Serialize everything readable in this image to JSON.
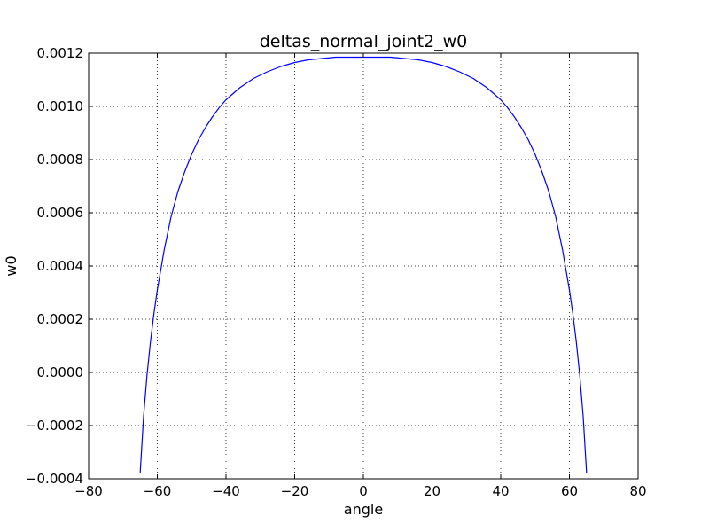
{
  "chart_data": {
    "type": "line",
    "title": "deltas_normal_joint2_w0",
    "xlabel": "angle",
    "ylabel": "w0",
    "xlim": [
      -80,
      80
    ],
    "ylim": [
      -0.0004,
      0.0012
    ],
    "xticks": [
      -80,
      -60,
      -40,
      -20,
      0,
      20,
      40,
      60,
      80
    ],
    "xtick_labels": [
      "−80",
      "−60",
      "−40",
      "−20",
      "0",
      "20",
      "40",
      "60",
      "80"
    ],
    "yticks": [
      -0.0004,
      -0.0002,
      0.0,
      0.0002,
      0.0004,
      0.0006,
      0.0008,
      0.001,
      0.0012
    ],
    "ytick_labels": [
      "−0.0004",
      "−0.0002",
      "0.0000",
      "0.0002",
      "0.0004",
      "0.0006",
      "0.0008",
      "0.0010",
      "0.0012"
    ],
    "grid": true,
    "grid_style": "dotted",
    "line_color": "#0000ff",
    "series": [
      {
        "x": [
          -65,
          -64,
          -63,
          -62,
          -61,
          -60,
          -58,
          -56,
          -54,
          -52,
          -50,
          -48,
          -46,
          -44,
          -42,
          -40,
          -36,
          -32,
          -28,
          -24,
          -20,
          -16,
          -12,
          -8,
          -4,
          0,
          4,
          8,
          12,
          16,
          20,
          24,
          28,
          32,
          36,
          40,
          42,
          44,
          46,
          48,
          50,
          52,
          54,
          56,
          58,
          60,
          61,
          62,
          63,
          64,
          65
        ],
        "y": [
          -0.00038,
          -0.000165,
          -1e-05,
          0.000115,
          0.00022,
          0.00031,
          0.00046,
          0.000585,
          0.00068,
          0.000755,
          0.00082,
          0.000875,
          0.00092,
          0.00096,
          0.000995,
          0.001025,
          0.00107,
          0.001105,
          0.00113,
          0.00115,
          0.001165,
          0.001175,
          0.00118,
          0.001185,
          0.001185,
          0.001185,
          0.001185,
          0.001185,
          0.00118,
          0.001175,
          0.001165,
          0.00115,
          0.00113,
          0.001105,
          0.00107,
          0.001025,
          0.000995,
          0.00096,
          0.00092,
          0.000875,
          0.00082,
          0.000755,
          0.00068,
          0.000585,
          0.00046,
          0.00031,
          0.00022,
          0.000115,
          -1e-05,
          -0.000165,
          -0.00038
        ]
      }
    ]
  }
}
